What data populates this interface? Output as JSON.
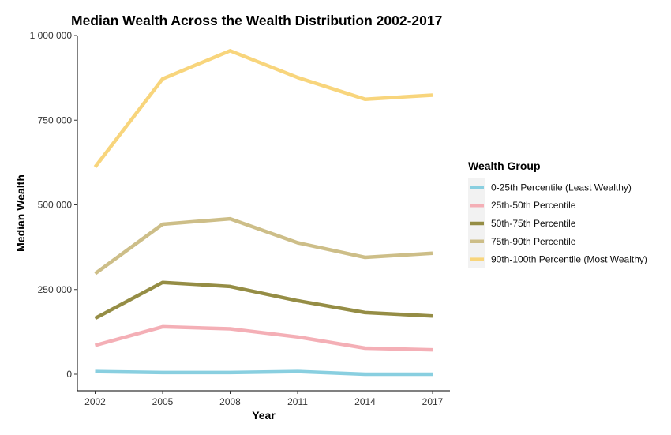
{
  "chart_data": {
    "type": "line",
    "title": "Median Wealth Across the Wealth Distribution 2002-2017",
    "xlabel": "Year",
    "ylabel": "Median Wealth",
    "x": [
      2002,
      2005,
      2008,
      2011,
      2014,
      2017
    ],
    "x_tick_labels": [
      "2002",
      "2005",
      "2008",
      "2011",
      "2014",
      "2017"
    ],
    "y_ticks": [
      0,
      250000,
      500000,
      750000,
      1000000
    ],
    "y_tick_labels": [
      "0",
      "250 000",
      "500 000",
      "750 000",
      "1 000 000"
    ],
    "xlim": [
      2002,
      2017
    ],
    "ylim": [
      0,
      1000000
    ],
    "grid": false,
    "legend_position": "right",
    "legend_title": "Wealth Group",
    "series": [
      {
        "name": "0-25th Percentile (Least Wealthy)",
        "color": "#89CFE0",
        "values": [
          8000,
          5000,
          5000,
          8000,
          0,
          0
        ]
      },
      {
        "name": "25th-50th Percentile",
        "color": "#F4AFB6",
        "values": [
          85000,
          140000,
          134000,
          110000,
          77000,
          72000
        ]
      },
      {
        "name": "50th-75th Percentile",
        "color": "#958D45",
        "values": [
          165000,
          271000,
          259000,
          217000,
          182000,
          172000
        ]
      },
      {
        "name": "75th-90th Percentile",
        "color": "#CDBE88",
        "values": [
          297000,
          443000,
          459000,
          388000,
          345000,
          357000
        ]
      },
      {
        "name": "90th-100th Percentile (Most Wealthy)",
        "color": "#F8D57C",
        "values": [
          612000,
          872000,
          955000,
          876000,
          812000,
          824000
        ]
      }
    ]
  }
}
